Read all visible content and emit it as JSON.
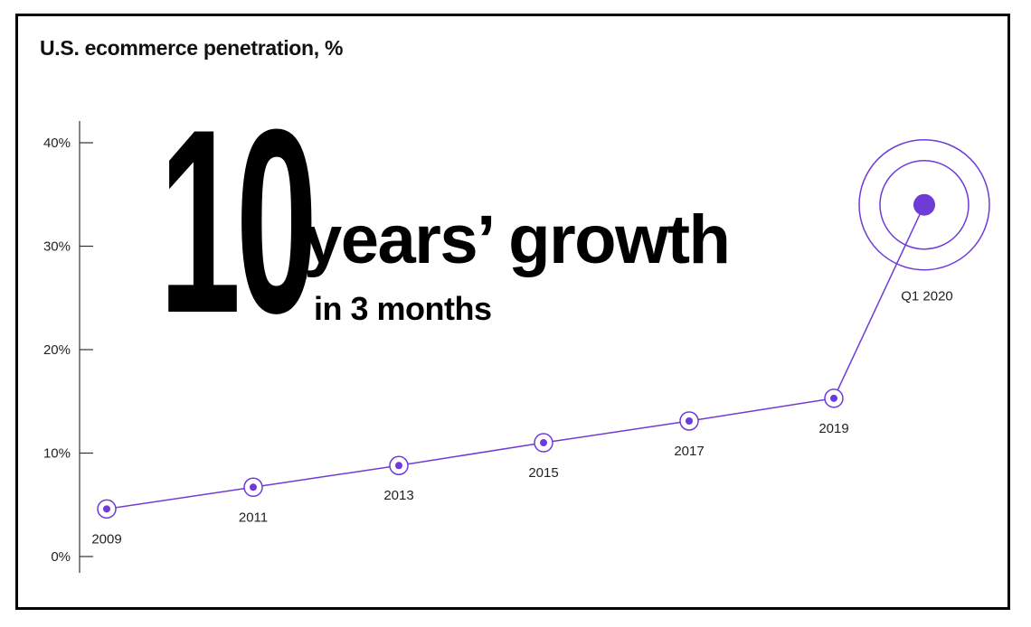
{
  "chart_data": {
    "type": "line",
    "title": "U.S. ecommerce penetration, %",
    "xlabel": "",
    "ylabel": "",
    "ylim": [
      0,
      40
    ],
    "y_ticks": [
      "0%",
      "10%",
      "20%",
      "30%",
      "40%"
    ],
    "y_tick_values": [
      0,
      10,
      20,
      30,
      40
    ],
    "grid": false,
    "accent_color": "#6f3bd6",
    "series": [
      {
        "points": [
          {
            "label": "2009",
            "value": 4.6
          },
          {
            "label": "2011",
            "value": 6.7
          },
          {
            "label": "2013",
            "value": 8.8
          },
          {
            "label": "2015",
            "value": 11.0
          },
          {
            "label": "2017",
            "value": 13.1
          },
          {
            "label": "2019",
            "value": 15.3
          },
          {
            "label": "Q1 2020",
            "value": 34.0
          }
        ]
      }
    ],
    "annotation": {
      "number": "10",
      "headline": "years’ growth",
      "subhead": "in 3 months"
    }
  }
}
